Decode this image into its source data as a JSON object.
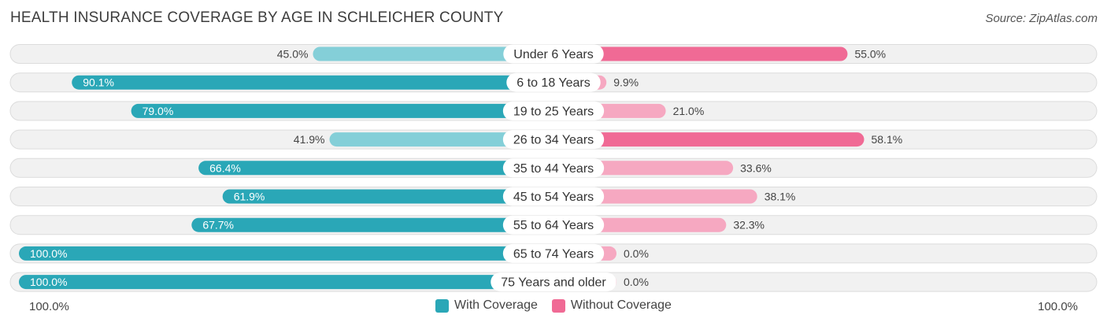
{
  "header": {
    "title": "HEALTH INSURANCE COVERAGE BY AGE IN SCHLEICHER COUNTY",
    "source": "Source: ZipAtlas.com"
  },
  "axis": {
    "left_label": "100.0%",
    "right_label": "100.0%"
  },
  "legend": {
    "with_label": "With Coverage",
    "without_label": "Without Coverage"
  },
  "colors": {
    "with_strong": "#2aa7b7",
    "with_light": "#84cfd8",
    "without_strong": "#f06a95",
    "without_light": "#f6a8c1",
    "row_bg": "#f1f1f1",
    "row_border": "#dcdcdc"
  },
  "chart_data": {
    "type": "bar",
    "orientation": "horizontal-diverging",
    "title": "HEALTH INSURANCE COVERAGE BY AGE IN SCHLEICHER COUNTY",
    "categories": [
      "Under 6 Years",
      "6 to 18 Years",
      "19 to 25 Years",
      "26 to 34 Years",
      "35 to 44 Years",
      "45 to 54 Years",
      "55 to 64 Years",
      "65 to 74 Years",
      "75 Years and older"
    ],
    "series": [
      {
        "name": "With Coverage",
        "values": [
          45.0,
          90.1,
          79.0,
          41.9,
          66.4,
          61.9,
          67.7,
          100.0,
          100.0
        ],
        "labels": [
          "45.0%",
          "90.1%",
          "79.0%",
          "41.9%",
          "66.4%",
          "61.9%",
          "67.7%",
          "100.0%",
          "100.0%"
        ]
      },
      {
        "name": "Without Coverage",
        "values": [
          55.0,
          9.9,
          21.0,
          58.1,
          33.6,
          38.1,
          32.3,
          0.0,
          0.0
        ],
        "labels": [
          "55.0%",
          "9.9%",
          "21.0%",
          "58.1%",
          "33.6%",
          "38.1%",
          "32.3%",
          "0.0%",
          "0.0%"
        ]
      }
    ],
    "xlim": [
      -100,
      100
    ],
    "legend_position": "bottom-center"
  }
}
